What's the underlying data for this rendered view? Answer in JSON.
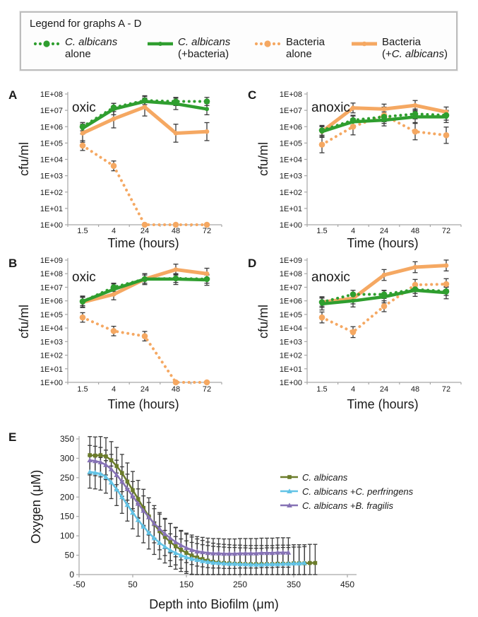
{
  "colors": {
    "candida_green": "#2f9e2f",
    "bacteria_orange": "#f5a862",
    "albicans_olive": "#6b7c2a",
    "perfringens_blue": "#62c3e6",
    "fragilis_purple": "#8672b5",
    "error_bar": "#3a3a3a",
    "axis": "#a6a6a6"
  },
  "legend": {
    "title": "Legend for graphs A - D",
    "items": [
      {
        "line1": "C. albicans",
        "line2_pre": "alone",
        "line2_italic": "",
        "line2_post": ""
      },
      {
        "line1": "C. albicans",
        "line2_pre": "(+bacteria)",
        "line2_italic": "",
        "line2_post": ""
      },
      {
        "line1": "Bacteria",
        "line2_pre": "alone",
        "line2_italic": "",
        "line2_post": ""
      },
      {
        "line1": "Bacteria",
        "line2_pre": "(+",
        "line2_italic": "C. albicans",
        "line2_post": ")"
      }
    ]
  },
  "chart_data": [
    {
      "id": "A",
      "type": "line",
      "panel": "A",
      "condition": "oxic",
      "y_scale": "log10",
      "ylabel": "cfu/ml",
      "xlabel": "Time (hours)",
      "categories": [
        "1.5",
        "4",
        "24",
        "48",
        "72"
      ],
      "y_tick_labels": [
        "1E+00",
        "1E+01",
        "1E+02",
        "1E+03",
        "1E+04",
        "1E+05",
        "1E+06",
        "1E+07",
        "1E+08"
      ],
      "series": [
        {
          "name": "C. albicans alone",
          "style": "green-dotted",
          "err_dec": 0.25,
          "values": [
            1000000.0,
            15000000.0,
            40000000.0,
            35000000.0,
            35000000.0
          ]
        },
        {
          "name": "C. albicans (+bacteria)",
          "style": "green-solid",
          "err_dec": 0.35,
          "values": [
            800000.0,
            12000000.0,
            35000000.0,
            25000000.0,
            12000000.0
          ]
        },
        {
          "name": "Bacteria alone",
          "style": "orange-dotted",
          "err_dec": 0.3,
          "values": [
            70000.0,
            4000.0,
            1,
            1,
            1
          ]
        },
        {
          "name": "Bacteria (+C. albicans)",
          "style": "orange-solid",
          "err_dec": 0.55,
          "values": [
            400000.0,
            3000000.0,
            16000000.0,
            400000.0,
            500000.0
          ]
        }
      ]
    },
    {
      "id": "B",
      "type": "line",
      "panel": "B",
      "condition": "oxic",
      "y_scale": "log10",
      "ylabel": "cfu/ml",
      "xlabel": "Time (hours)",
      "categories": [
        "1.5",
        "4",
        "24",
        "48",
        "72"
      ],
      "y_tick_labels": [
        "1E+00",
        "1E+01",
        "1E+02",
        "1E+03",
        "1E+04",
        "1E+05",
        "1E+06",
        "1E+07",
        "1E+08",
        "1E+09"
      ],
      "series": [
        {
          "name": "C. albicans alone",
          "style": "green-dotted",
          "err_dec": 0.3,
          "values": [
            900000.0,
            10000000.0,
            40000000.0,
            45000000.0,
            40000000.0
          ]
        },
        {
          "name": "C. albicans (+bacteria)",
          "style": "green-solid",
          "err_dec": 0.4,
          "values": [
            900000.0,
            7000000.0,
            40000000.0,
            40000000.0,
            35000000.0
          ]
        },
        {
          "name": "Bacteria alone",
          "style": "orange-dotted",
          "err_dec": 0.35,
          "values": [
            60000.0,
            6000.0,
            2500.0,
            1,
            1
          ]
        },
        {
          "name": "Bacteria (+C. albicans)",
          "style": "orange-solid",
          "err_dec": 0.4,
          "values": [
            800000.0,
            3000000.0,
            40000000.0,
            200000000.0,
            100000000.0
          ]
        }
      ]
    },
    {
      "id": "C",
      "type": "line",
      "panel": "C",
      "condition": "anoxic",
      "y_scale": "log10",
      "ylabel": "cfu/ml",
      "xlabel": "Time (hours)",
      "categories": [
        "1.5",
        "4",
        "24",
        "48",
        "72"
      ],
      "y_tick_labels": [
        "1E+00",
        "1E+01",
        "1E+02",
        "1E+03",
        "1E+04",
        "1E+05",
        "1E+06",
        "1E+07",
        "1E+08"
      ],
      "series": [
        {
          "name": "C. albicans alone",
          "style": "green-dotted",
          "err_dec": 0.3,
          "values": [
            600000.0,
            2500000.0,
            4000000.0,
            6000000.0,
            5000000.0
          ]
        },
        {
          "name": "C. albicans (+bacteria)",
          "style": "green-solid",
          "err_dec": 0.35,
          "values": [
            500000.0,
            2000000.0,
            2500000.0,
            4000000.0,
            4000000.0
          ]
        },
        {
          "name": "Bacteria alone",
          "style": "orange-dotted",
          "err_dec": 0.5,
          "values": [
            80000.0,
            1000000.0,
            5000000.0,
            500000.0,
            300000.0
          ]
        },
        {
          "name": "Bacteria (+C. albicans)",
          "style": "orange-solid",
          "err_dec": 0.3,
          "values": [
            500000.0,
            14000000.0,
            12000000.0,
            20000000.0,
            8000000.0
          ]
        }
      ]
    },
    {
      "id": "D",
      "type": "line",
      "panel": "D",
      "condition": "anoxic",
      "y_scale": "log10",
      "ylabel": "cfu/ml",
      "xlabel": "Time (hours)",
      "categories": [
        "1.5",
        "4",
        "24",
        "48",
        "72"
      ],
      "y_tick_labels": [
        "1E+00",
        "1E+01",
        "1E+02",
        "1E+03",
        "1E+04",
        "1E+05",
        "1E+06",
        "1E+07",
        "1E+08",
        "1E+09"
      ],
      "series": [
        {
          "name": "C. albicans alone",
          "style": "green-dotted",
          "err_dec": 0.3,
          "values": [
            800000.0,
            3000000.0,
            3000000.0,
            7000000.0,
            5000000.0
          ]
        },
        {
          "name": "C. albicans (+bacteria)",
          "style": "green-solid",
          "err_dec": 0.45,
          "values": [
            600000.0,
            1000000.0,
            2000000.0,
            6000000.0,
            4000000.0
          ]
        },
        {
          "name": "Bacteria alone",
          "style": "orange-dotted",
          "err_dec": 0.4,
          "values": [
            60000.0,
            5000.0,
            400000.0,
            15000000.0,
            17000000.0
          ]
        },
        {
          "name": "Bacteria (+C. albicans)",
          "style": "orange-solid",
          "err_dec": 0.4,
          "values": [
            800000.0,
            1500000.0,
            80000000.0,
            300000000.0,
            400000000.0
          ]
        }
      ]
    },
    {
      "id": "E",
      "type": "line",
      "panel": "E",
      "ylabel": "Oxygen (μM)",
      "xlabel": "Depth into Biofilm (μm)",
      "xlim": [
        -50,
        450
      ],
      "ylim": [
        0,
        350
      ],
      "x_ticks": [
        -50,
        50,
        150,
        250,
        350,
        450
      ],
      "y_ticks": [
        0,
        50,
        100,
        150,
        200,
        250,
        300,
        350
      ],
      "x_start": -30,
      "x_step": 10,
      "series": [
        {
          "name": "C. albicans",
          "style": "olive-square",
          "err": 48,
          "y": [
            308,
            307,
            308,
            305,
            295,
            280,
            262,
            240,
            218,
            195,
            172,
            150,
            130,
            112,
            97,
            84,
            73,
            64,
            56,
            49,
            44,
            40,
            36,
            33,
            31,
            30,
            29,
            28,
            28,
            27,
            27,
            27,
            27,
            27,
            27,
            28,
            28,
            28,
            29,
            29,
            29,
            30,
            30
          ]
        },
        {
          "name": "C. albicans +C. perfringens",
          "style": "blue-triangle",
          "err": 42,
          "y": [
            265,
            263,
            260,
            252,
            238,
            220,
            200,
            180,
            160,
            141,
            124,
            108,
            94,
            82,
            72,
            63,
            56,
            50,
            45,
            41,
            38,
            35,
            33,
            31,
            30,
            29,
            28,
            28,
            27,
            27,
            26,
            26,
            26,
            27,
            27,
            27,
            28,
            28,
            29,
            29,
            30
          ]
        },
        {
          "name": "C. albicans +B. fragilis",
          "style": "purple-triangle",
          "err": 38,
          "y": [
            295,
            293,
            290,
            283,
            272,
            257,
            240,
            221,
            202,
            183,
            165,
            148,
            132,
            118,
            105,
            94,
            84,
            76,
            69,
            64,
            60,
            58,
            56,
            55,
            55,
            54,
            54,
            54,
            55,
            55,
            55,
            55,
            56,
            56,
            56,
            57,
            57,
            57
          ]
        }
      ]
    }
  ]
}
